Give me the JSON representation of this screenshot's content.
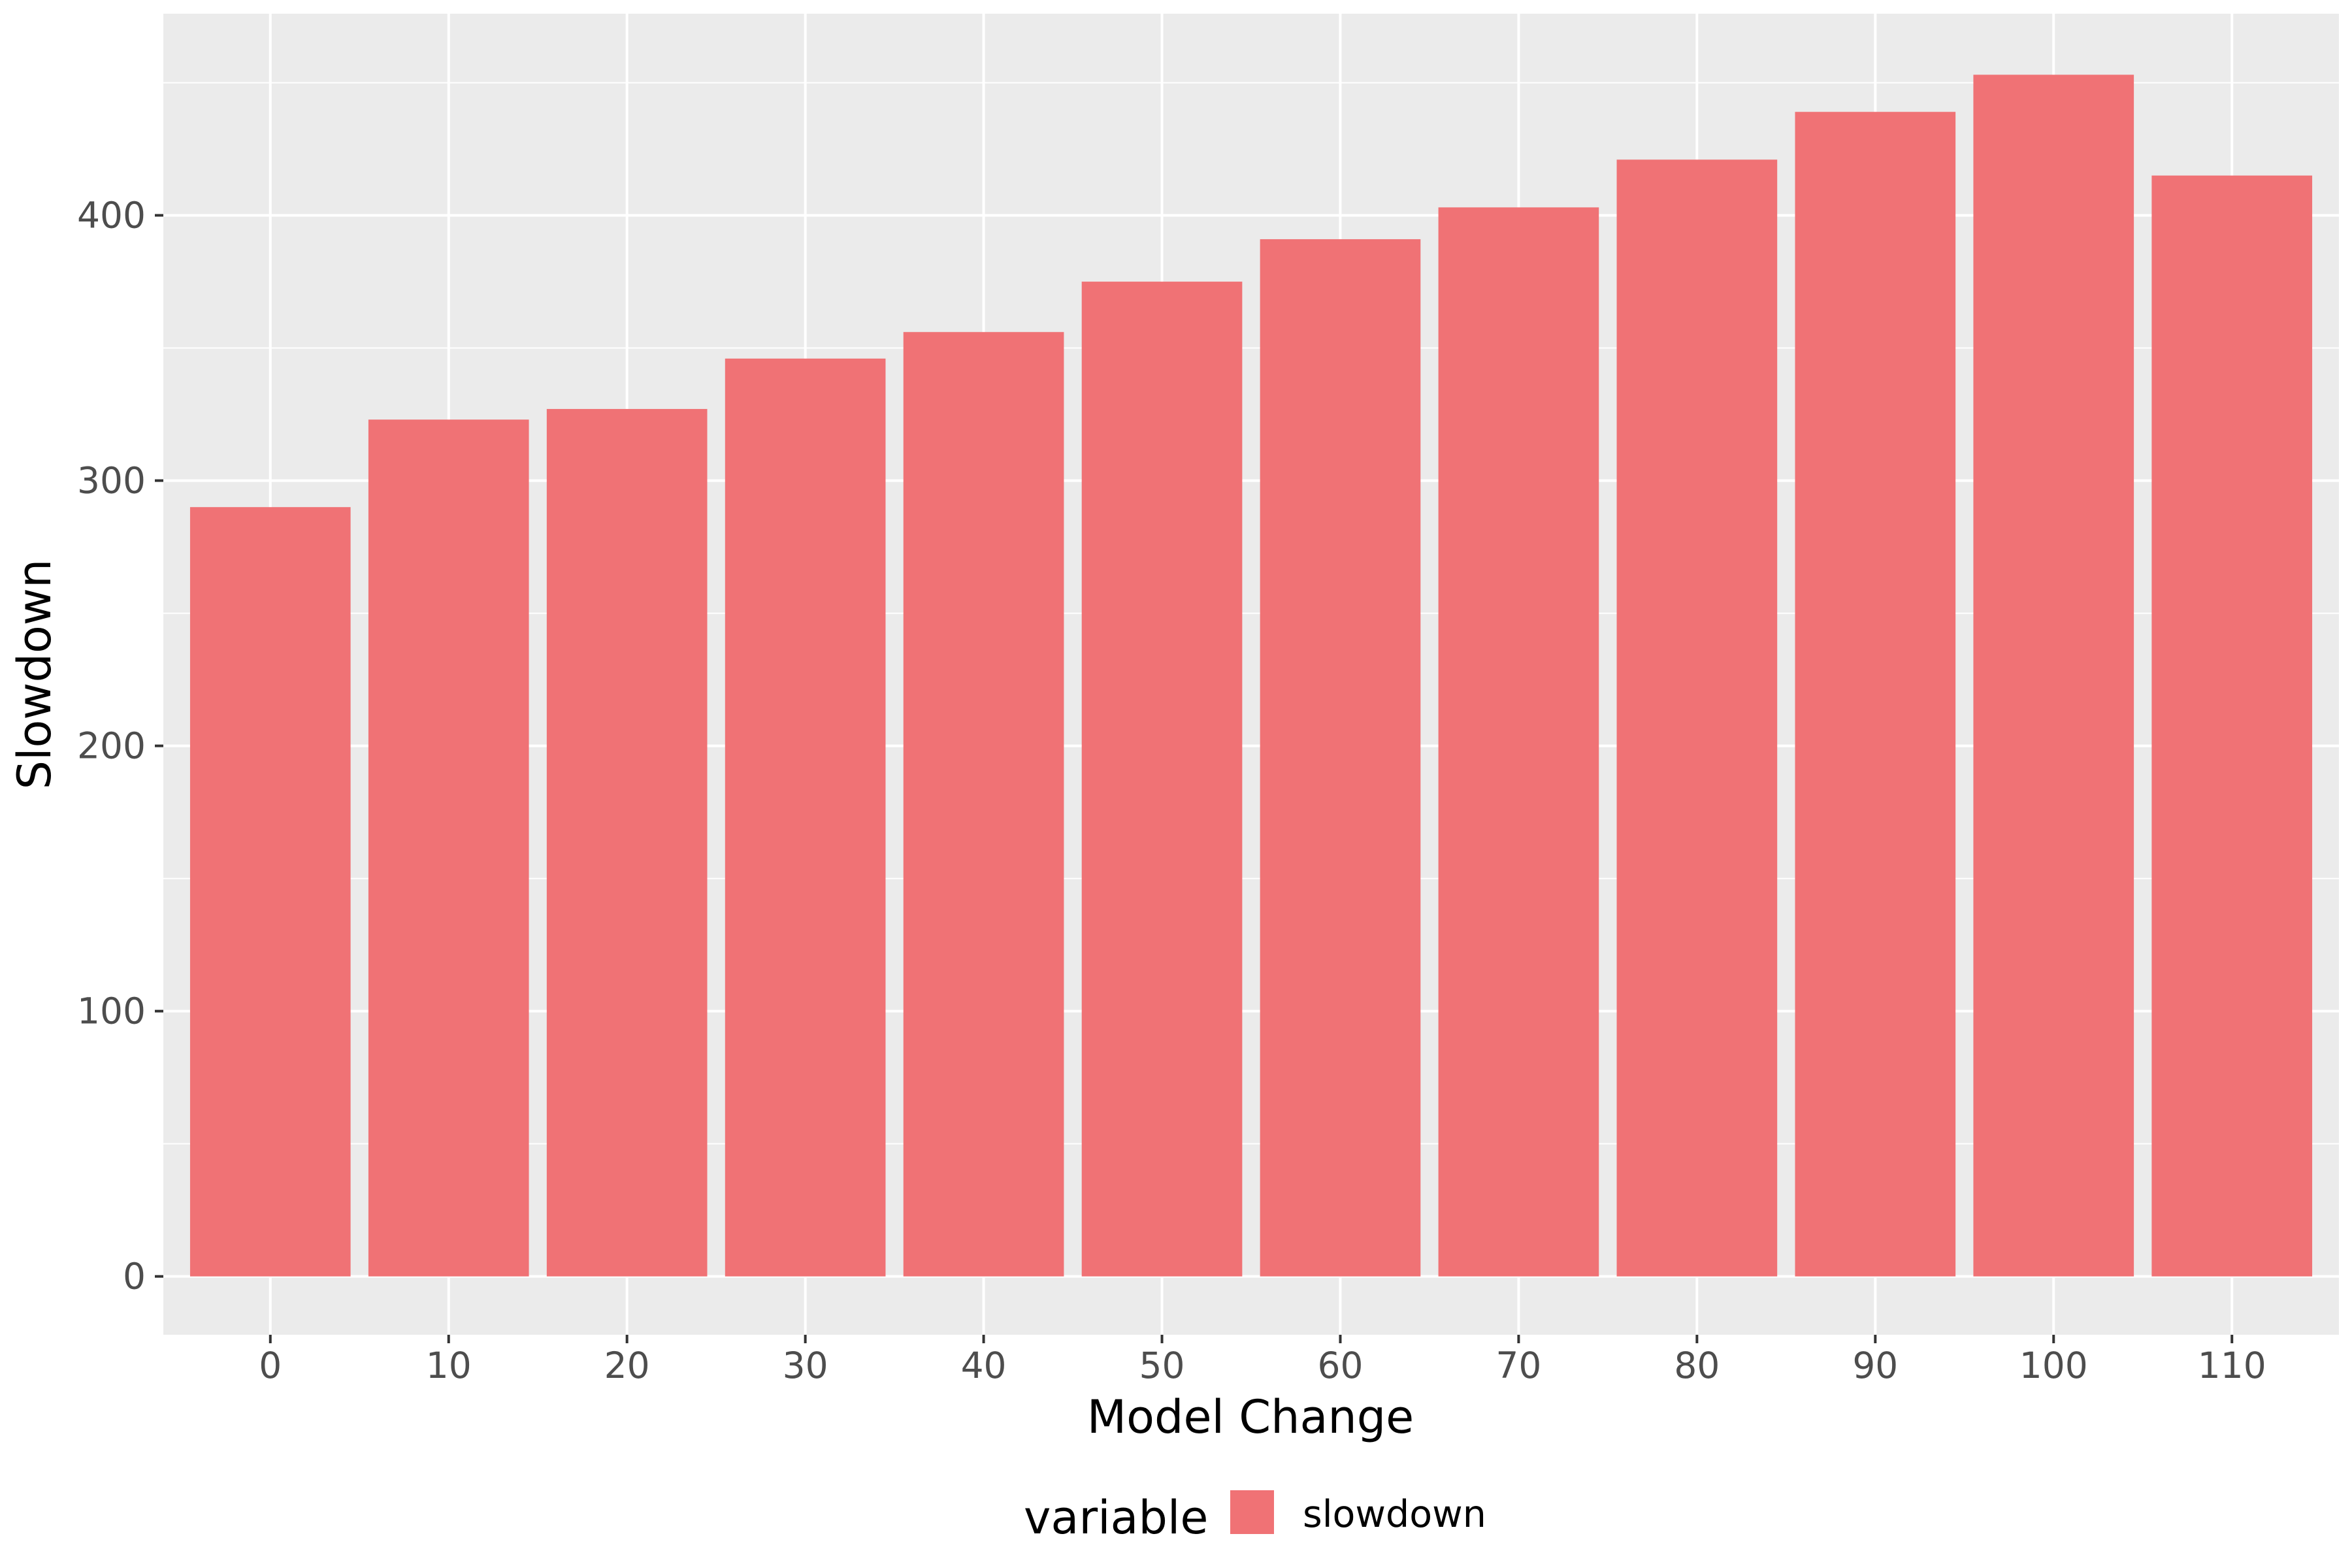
{
  "chart_data": {
    "type": "bar",
    "xlabel": "Model Change",
    "ylabel": "Slowdown",
    "categories": [
      "0",
      "10",
      "20",
      "30",
      "40",
      "50",
      "60",
      "70",
      "80",
      "90",
      "100",
      "110"
    ],
    "series": [
      {
        "name": "slowdown",
        "values": [
          290,
          323,
          327,
          346,
          356,
          375,
          391,
          403,
          421,
          439,
          453,
          415
        ]
      }
    ],
    "ylim": [
      -22,
      476
    ],
    "yticks": [
      "0",
      "100",
      "200",
      "300",
      "400"
    ],
    "grid": true,
    "legend": {
      "title": "variable",
      "position": "bottom",
      "items": [
        "slowdown"
      ]
    }
  },
  "colors": {
    "panel_background": "#EBEBEB",
    "grid_major": "#FFFFFF",
    "bar_fill": "#F07275",
    "tick_text": "#4D4D4D",
    "tick_mark": "#333333",
    "text": "#000000"
  }
}
